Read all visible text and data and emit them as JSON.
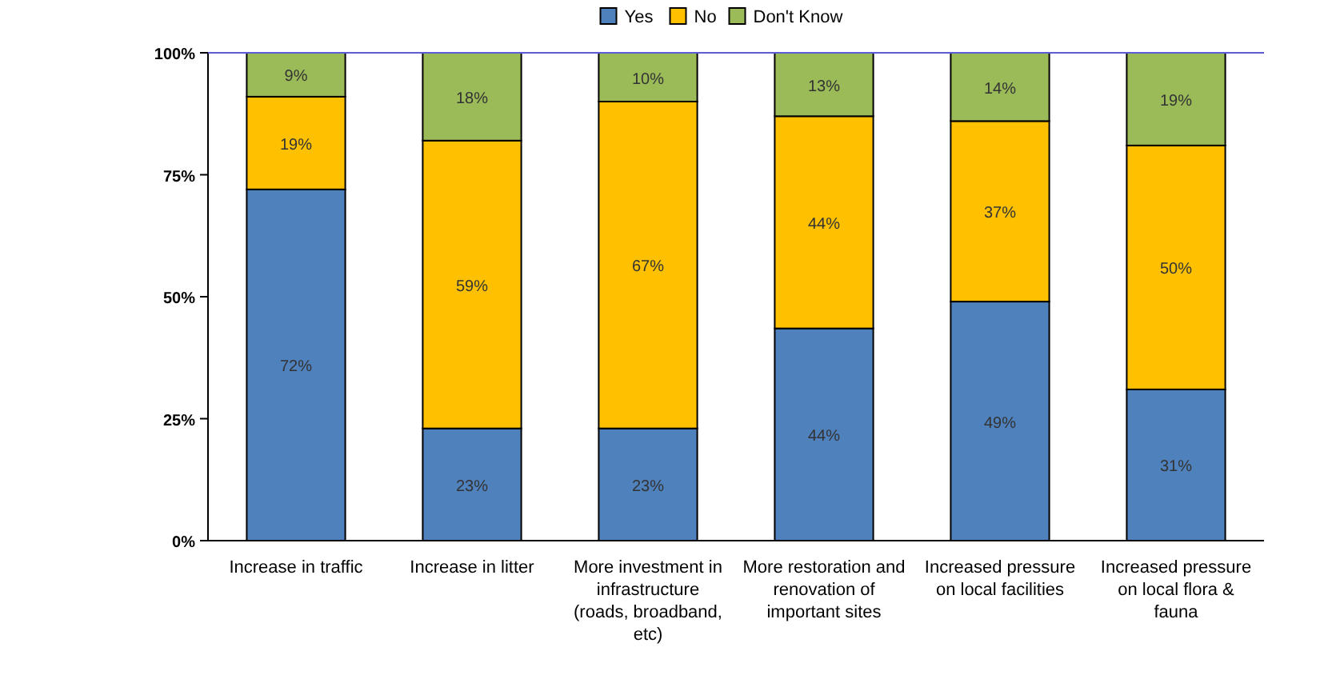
{
  "chart_data": {
    "type": "bar",
    "stacked": true,
    "categories": [
      "Increase in traffic",
      "Increase in litter",
      "More investment in infrastructure (roads, broadband, etc)",
      "More restoration and renovation of important sites",
      "Increased pressure on local facilities",
      "Increased pressure on local flora & fauna"
    ],
    "series": [
      {
        "name": "Yes",
        "color": "#4f81bd",
        "values": [
          72,
          23,
          23,
          43.5,
          49,
          31
        ],
        "value_labels": [
          "72%",
          "23%",
          "23%",
          "44%",
          "49%",
          "31%"
        ]
      },
      {
        "name": "No",
        "color": "#ffc000",
        "values": [
          19,
          59,
          67,
          43.5,
          37,
          50
        ],
        "value_labels": [
          "19%",
          "59%",
          "67%",
          "44%",
          "37%",
          "50%"
        ]
      },
      {
        "name": "Don't Know",
        "color": "#9bbb59",
        "values": [
          9,
          18,
          10,
          13,
          14,
          19
        ],
        "value_labels": [
          "9%",
          "18%",
          "10%",
          "13%",
          "14%",
          "19%"
        ]
      }
    ],
    "ylim": [
      0,
      100
    ],
    "yticks": [
      {
        "value": 0,
        "label": "0%"
      },
      {
        "value": 25,
        "label": "25%"
      },
      {
        "value": 50,
        "label": "50%"
      },
      {
        "value": 75,
        "label": "75%"
      },
      {
        "value": 100,
        "label": "100%"
      }
    ],
    "legend": "top"
  }
}
